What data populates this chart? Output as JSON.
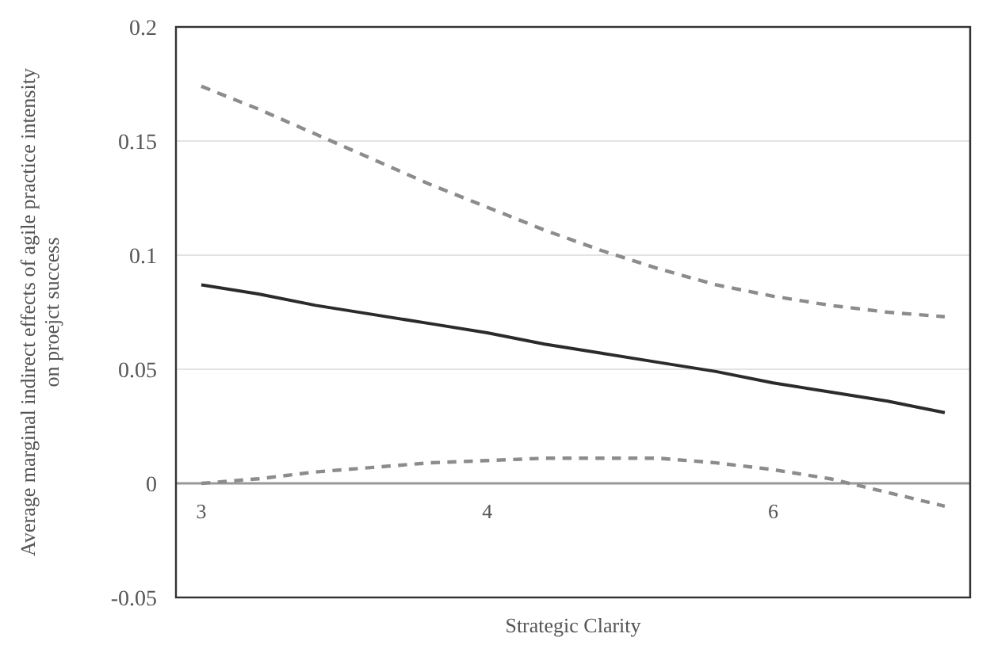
{
  "chart_data": {
    "type": "line",
    "xlabel": "Strategic Clarity",
    "ylabel": "Average marginal indirect effects of agile practice intensity on proejct success",
    "categories": [
      "3",
      null,
      null,
      null,
      null,
      "4",
      null,
      null,
      null,
      null,
      "6",
      null,
      null,
      null
    ],
    "ylim": [
      -0.05,
      0.2
    ],
    "yticks": [
      -0.05,
      0,
      0.05,
      0.1,
      0.15,
      0.2
    ],
    "grid": "y",
    "marker": "none",
    "series": [
      {
        "color": "#2b2b2b",
        "line_style": "solid",
        "values": [
          0.087,
          0.083,
          0.078,
          0.074,
          0.07,
          0.066,
          0.061,
          0.057,
          0.053,
          0.049,
          0.044,
          0.04,
          0.036,
          0.031
        ]
      },
      {
        "color": "#8c8c8c",
        "line_style": "dashed",
        "values": [
          0.174,
          0.164,
          0.153,
          0.142,
          0.131,
          0.121,
          0.111,
          0.102,
          0.094,
          0.087,
          0.082,
          0.078,
          0.075,
          0.073
        ]
      },
      {
        "color": "#8c8c8c",
        "line_style": "dashed",
        "values": [
          0,
          0.002,
          0.005,
          0.007,
          0.009,
          0.01,
          0.011,
          0.011,
          0.011,
          0.009,
          0.006,
          0.002,
          -0.004,
          -0.01
        ]
      }
    ]
  }
}
